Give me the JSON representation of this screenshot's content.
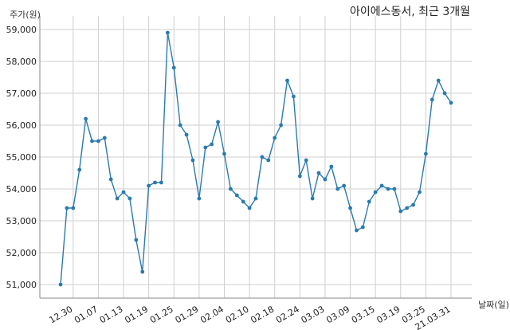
{
  "chart_data": {
    "type": "line",
    "title": "아이에스동서, 최근 3개월",
    "ylabel": "주가(원)",
    "xlabel": "날짜(일)",
    "ylim": [
      50600,
      59200
    ],
    "yticks": [
      51000,
      52000,
      53000,
      54000,
      55000,
      56000,
      57000,
      58000,
      59000
    ],
    "ytick_labels": [
      "51,000",
      "52,000",
      "53,000",
      "54,000",
      "55,000",
      "56,000",
      "57,000",
      "58,000",
      "59,000"
    ],
    "xtick_indices": [
      2,
      6,
      10,
      14,
      18,
      22,
      26,
      30,
      34,
      38,
      42,
      46,
      50,
      54,
      58,
      62
    ],
    "xtick_labels": [
      "12.30",
      "01.07",
      "01.13",
      "01.19",
      "01.25",
      "01.29",
      "02.04",
      "02.10",
      "02.18",
      "02.24",
      "03.03",
      "03.09",
      "03.15",
      "03.19",
      "03.25",
      "21.03.31"
    ],
    "grid": true,
    "legend": "none",
    "series": [
      {
        "color": "#2a7ab0",
        "values": [
          51000,
          53400,
          53400,
          54600,
          56200,
          55500,
          55500,
          55600,
          54300,
          53700,
          53900,
          53700,
          52400,
          51400,
          54100,
          54200,
          54200,
          58900,
          57800,
          56000,
          55700,
          54900,
          53700,
          55300,
          55400,
          56100,
          55100,
          54000,
          53800,
          53600,
          53400,
          53700,
          55000,
          54900,
          55600,
          56000,
          57400,
          56900,
          54400,
          54900,
          53700,
          54500,
          54300,
          54700,
          54000,
          54100,
          53400,
          52700,
          52800,
          53600,
          53900,
          54100,
          54000,
          54000,
          53300,
          53400,
          53500,
          53900,
          55100,
          56800,
          57400,
          57000,
          56700
        ]
      }
    ]
  }
}
